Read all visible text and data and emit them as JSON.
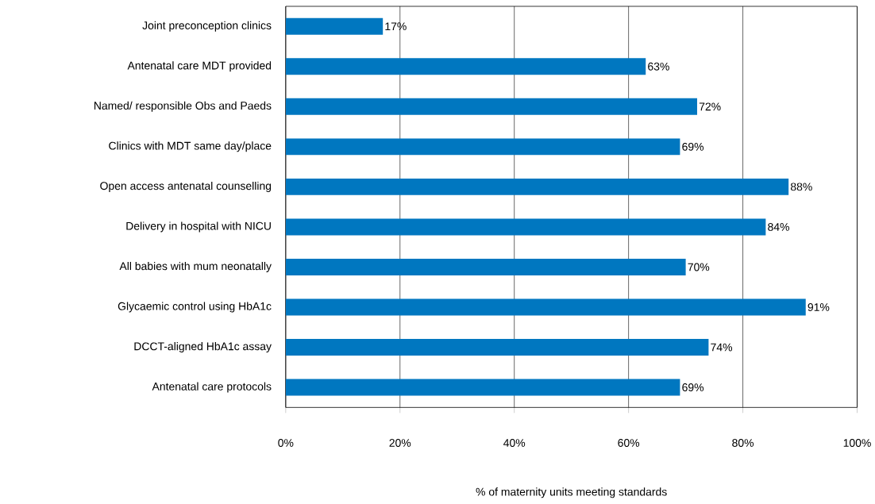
{
  "chart_data": {
    "type": "bar",
    "orientation": "horizontal",
    "xlabel": "% of maternity units meeting standards",
    "categories": [
      "Joint preconception clinics",
      "Antenatal care MDT provided",
      "Named/ responsible Obs and Paeds",
      "Clinics with MDT same day/place",
      "Open access antenatal counselling",
      "Delivery in hospital with NICU",
      "All babies with mum neonatally",
      "Glycaemic control using HbA1c",
      "DCCT-aligned HbA1c assay",
      "Antenatal care protocols"
    ],
    "values": [
      17,
      63,
      72,
      69,
      88,
      84,
      70,
      91,
      74,
      69
    ],
    "value_labels": [
      "17%",
      "63%",
      "72%",
      "69%",
      "88%",
      "84%",
      "70%",
      "91%",
      "74%",
      "69%"
    ],
    "color": "#0077c0",
    "xlim": [
      0,
      100
    ],
    "xticks": [
      {
        "value": 0,
        "label": "0%"
      },
      {
        "value": 20,
        "label": "20%"
      },
      {
        "value": 40,
        "label": "40%"
      },
      {
        "value": 60,
        "label": "60%"
      },
      {
        "value": 80,
        "label": "80%"
      },
      {
        "value": 100,
        "label": "100%"
      }
    ],
    "grid": "x"
  }
}
